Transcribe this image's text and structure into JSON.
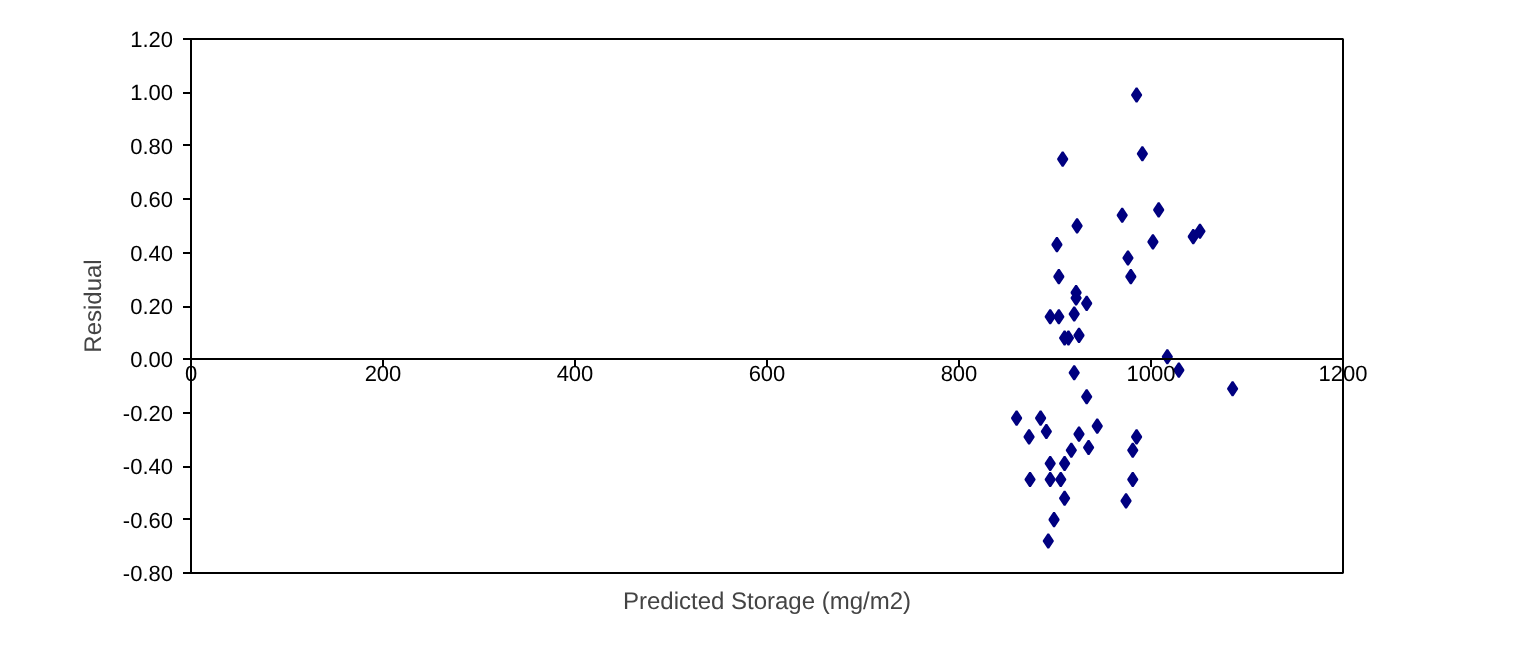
{
  "chart_data": {
    "type": "scatter",
    "xlabel": "Predicted Storage (mg/m2)",
    "ylabel": "Residual",
    "marker": "diamond",
    "grid": false,
    "xlim": [
      0,
      1200
    ],
    "ylim": [
      -0.8,
      1.2
    ],
    "xticks": [
      0,
      200,
      400,
      600,
      800,
      1000,
      1200
    ],
    "yticks": [
      {
        "value": -0.8,
        "label": "-0.80"
      },
      {
        "value": -0.6,
        "label": "-0.60"
      },
      {
        "value": -0.4,
        "label": "-0.40"
      },
      {
        "value": -0.2,
        "label": "-0.20"
      },
      {
        "value": 0,
        "label": "0.00"
      },
      {
        "value": 0.2,
        "label": "0.20"
      },
      {
        "value": 0.4,
        "label": "0.40"
      },
      {
        "value": 0.6,
        "label": "0.60"
      },
      {
        "value": 0.8,
        "label": "0.80"
      },
      {
        "value": 1.0,
        "label": "1.00"
      },
      {
        "value": 1.2,
        "label": "1.20"
      }
    ],
    "series": [
      {
        "color": "#000080",
        "x": [
          985,
          908,
          991,
          923,
          970,
          1008,
          902,
          1002,
          1044,
          1051,
          976,
          904,
          979,
          922,
          922,
          933,
          895,
          904,
          920,
          910,
          914,
          925,
          1017,
          1029,
          920,
          933,
          860,
          885,
          873,
          891,
          925,
          944,
          985,
          917,
          935,
          981,
          895,
          910,
          874,
          895,
          906,
          981,
          910,
          974,
          899,
          893,
          1085
        ],
        "values": [
          0.99,
          0.75,
          0.77,
          0.5,
          0.54,
          0.56,
          0.43,
          0.44,
          0.46,
          0.48,
          0.38,
          0.31,
          0.31,
          0.25,
          0.23,
          0.21,
          0.16,
          0.16,
          0.17,
          0.08,
          0.08,
          0.09,
          0.01,
          -0.04,
          -0.05,
          -0.14,
          -0.22,
          -0.22,
          -0.29,
          -0.27,
          -0.28,
          -0.25,
          -0.29,
          -0.34,
          -0.33,
          -0.34,
          -0.39,
          -0.39,
          -0.45,
          -0.45,
          -0.45,
          -0.45,
          -0.52,
          -0.53,
          -0.6,
          -0.68,
          -0.11
        ]
      }
    ]
  }
}
